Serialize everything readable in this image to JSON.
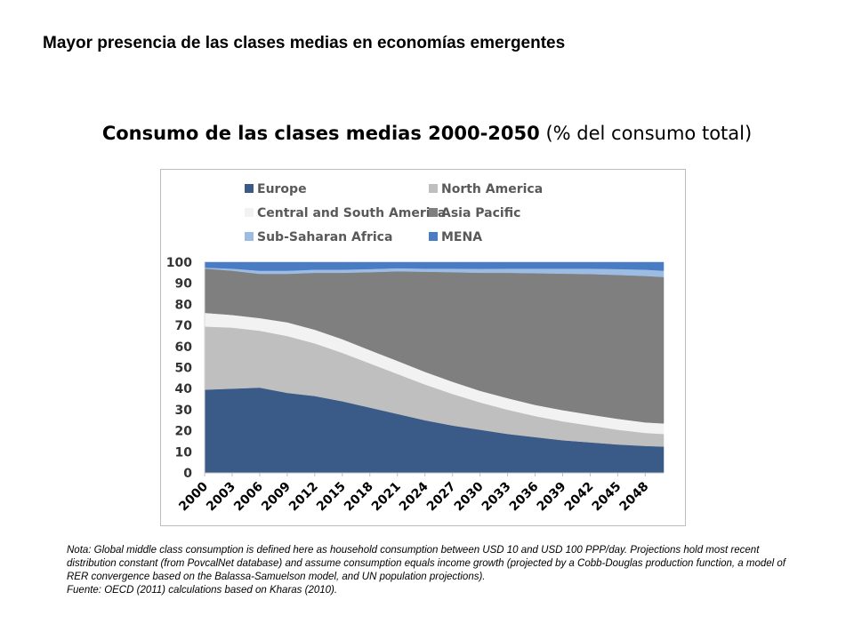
{
  "slide": {
    "title": "Mayor presencia de las clases medias en economías emergentes"
  },
  "chart_heading": {
    "bold": "Consumo de las clases medias 2000-2050",
    "normal": " (% del consumo total)"
  },
  "note": {
    "nota": "Nota: Global middle class consumption is defined here as household consumption between USD 10 and USD 100 PPP/day. Projections hold most recent distribution constant (from PovcalNet database) and assume consumption equals income growth (projected by a Cobb-Douglas production function, a model of RER convergence based on the Balassa-Samuelson model, and UN population projections).",
    "fuente": "Fuente: OECD (2011) calculations based on Kharas (2010)."
  },
  "chart_data": {
    "type": "area",
    "stacked": true,
    "ylim": [
      0,
      100
    ],
    "yticks": [
      0,
      10,
      20,
      30,
      40,
      50,
      60,
      70,
      80,
      90,
      100
    ],
    "x": [
      2000,
      2003,
      2006,
      2009,
      2012,
      2015,
      2018,
      2021,
      2024,
      2027,
      2030,
      2033,
      2036,
      2039,
      2042,
      2045,
      2048,
      2050
    ],
    "xtick_labels": [
      "2000",
      "2003",
      "2006",
      "2009",
      "2012",
      "2015",
      "2018",
      "2021",
      "2024",
      "2027",
      "2030",
      "2033",
      "2036",
      "2039",
      "2042",
      "2045",
      "2048"
    ],
    "legend_position": "top",
    "series": [
      {
        "name": "Europe",
        "color": "#3a5a87",
        "values": [
          39.5,
          40,
          40.5,
          38,
          36.5,
          34,
          31,
          28,
          25,
          22.5,
          20.5,
          18.5,
          17,
          15.5,
          14.5,
          13.5,
          12.8,
          12.5
        ]
      },
      {
        "name": "North America",
        "color": "#bfbfbf",
        "values": [
          30,
          29,
          27,
          27,
          25,
          23,
          21,
          19,
          17,
          15,
          13,
          11.5,
          10,
          9,
          8,
          7,
          6.2,
          6
        ]
      },
      {
        "name": "Central and South America",
        "color": "#f2f2f2",
        "values": [
          6.5,
          6,
          6,
          6.5,
          6.5,
          6.5,
          6.3,
          6.2,
          6,
          5.8,
          5.5,
          5.5,
          5.3,
          5.3,
          5.2,
          5.2,
          5,
          5
        ]
      },
      {
        "name": "Asia Pacific",
        "color": "#7f7f7f",
        "values": [
          21,
          21,
          21,
          23,
          27,
          31.5,
          37,
          42.5,
          47.5,
          52,
          56,
          59.5,
          62.5,
          64.8,
          66.7,
          68.3,
          69.5,
          69.5
        ]
      },
      {
        "name": "Sub-Saharan Africa",
        "color": "#9cbce4",
        "values": [
          0.5,
          1,
          1.5,
          1.5,
          1.5,
          1.5,
          1.5,
          1.5,
          1.5,
          1.7,
          1.9,
          2,
          2.2,
          2.4,
          2.6,
          2.8,
          3,
          3
        ]
      },
      {
        "name": "MENA",
        "color": "#4a7cc3",
        "values": [
          2.5,
          3,
          4,
          4,
          3.5,
          3.5,
          3.2,
          2.8,
          3,
          3,
          3.1,
          3,
          3,
          3,
          3,
          3.2,
          3.5,
          4
        ]
      }
    ]
  }
}
